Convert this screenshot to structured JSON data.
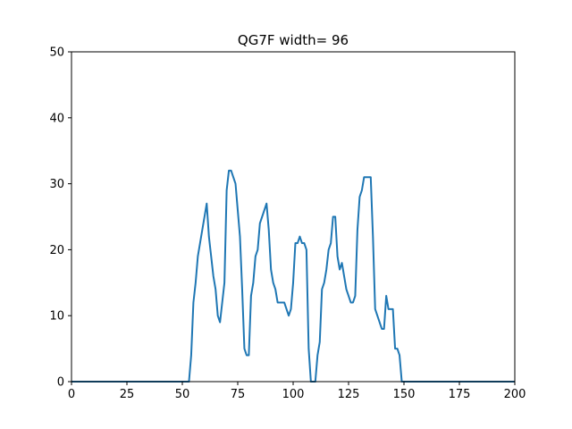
{
  "chart_data": {
    "type": "line",
    "title": "QG7F width= 96",
    "xlabel": "",
    "ylabel": "",
    "xlim": [
      0,
      200
    ],
    "ylim": [
      0,
      50
    ],
    "xticks": [
      0,
      25,
      50,
      75,
      100,
      125,
      150,
      175,
      200
    ],
    "yticks": [
      0,
      10,
      20,
      30,
      40,
      50
    ],
    "grid": false,
    "line_color": "#1f77b4",
    "series": [
      {
        "x": [
          0,
          50,
          53,
          54,
          55,
          56,
          57,
          58,
          59,
          60,
          61,
          62,
          63,
          64,
          65,
          66,
          67,
          68,
          69,
          70,
          71,
          72,
          73,
          74,
          75,
          76,
          77,
          78,
          79,
          80,
          81,
          82,
          83,
          84,
          85,
          86,
          87,
          88,
          89,
          90,
          91,
          92,
          93,
          94,
          95,
          96,
          97,
          98,
          99,
          100,
          101,
          102,
          103,
          104,
          105,
          106,
          107,
          108,
          109,
          110,
          111,
          112,
          113,
          114,
          115,
          116,
          117,
          118,
          119,
          120,
          121,
          122,
          123,
          124,
          125,
          126,
          127,
          128,
          129,
          130,
          131,
          132,
          133,
          134,
          135,
          136,
          137,
          138,
          139,
          140,
          141,
          142,
          143,
          144,
          145,
          146,
          147,
          148,
          149,
          150,
          200
        ],
        "y": [
          0,
          0,
          0,
          4,
          12,
          15,
          19,
          21,
          23,
          25,
          27,
          22,
          19,
          16,
          14,
          10,
          9,
          12,
          15,
          29,
          32,
          32,
          31,
          30,
          26,
          22,
          14,
          5,
          4,
          4,
          13,
          15,
          19,
          20,
          24,
          25,
          26,
          27,
          23,
          17,
          15,
          14,
          12,
          12,
          12,
          12,
          11,
          10,
          11,
          15,
          21,
          21,
          22,
          21,
          21,
          20,
          5,
          0,
          0,
          0,
          4,
          6,
          14,
          15,
          17,
          20,
          21,
          25,
          25,
          19,
          17,
          18,
          16,
          14,
          13,
          12,
          12,
          13,
          23,
          28,
          29,
          31,
          31,
          31,
          31,
          22,
          11,
          10,
          9,
          8,
          8,
          13,
          11,
          11,
          11,
          5,
          5,
          4,
          0,
          0,
          0
        ]
      }
    ]
  }
}
